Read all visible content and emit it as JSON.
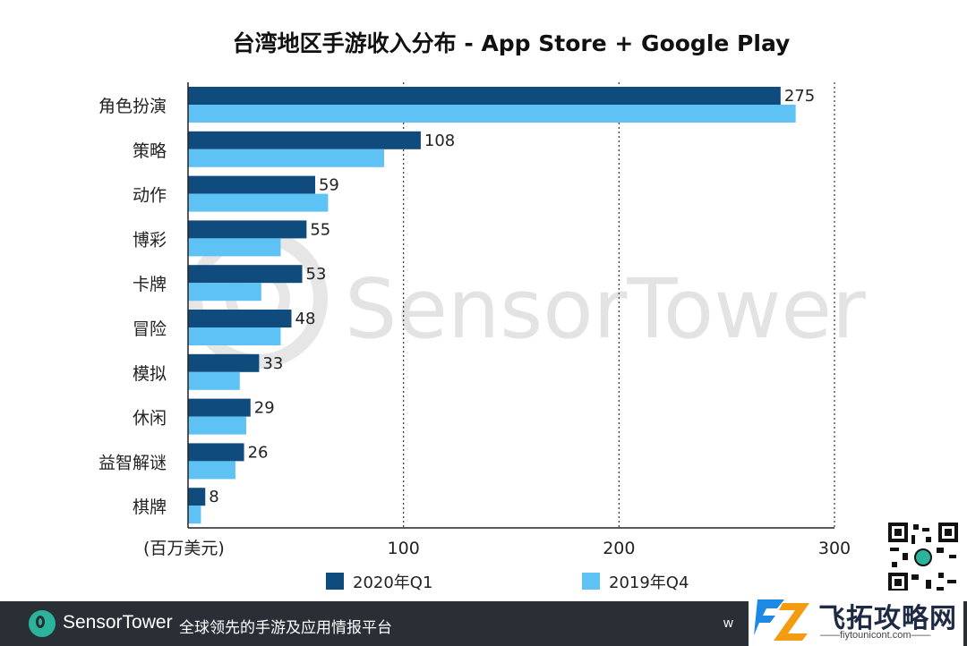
{
  "chart_data": {
    "type": "bar",
    "orientation": "horizontal",
    "title": "台湾地区手游收入分布 - App Store + Google Play",
    "categories": [
      "角色扮演",
      "策略",
      "动作",
      "博彩",
      "卡牌",
      "冒险",
      "模拟",
      "休闲",
      "益智解谜",
      "棋牌"
    ],
    "series": [
      {
        "name": "2020年Q1",
        "color": "#0f4c7d",
        "values": [
          275,
          108,
          59,
          55,
          53,
          48,
          33,
          29,
          26,
          8
        ],
        "data_labels": [
          "275",
          "108",
          "59",
          "55",
          "53",
          "48",
          "33",
          "29",
          "26",
          "8"
        ]
      },
      {
        "name": "2019年Q4",
        "color": "#5ec2f5",
        "values": [
          282,
          91,
          65,
          43,
          34,
          43,
          24,
          27,
          22,
          6
        ]
      }
    ],
    "xlim": [
      0,
      300
    ],
    "x_ticks": [
      "100",
      "200",
      "300"
    ],
    "unit_label": "(百万美元)",
    "grid": "vertical dotted",
    "legend_position": "bottom"
  },
  "watermark": {
    "text": "SensorTower"
  },
  "footer": {
    "brand_part1": "Sensor",
    "brand_part2": "Tower",
    "tagline": "全球领先的手游及应用情报平台",
    "url_partial": "w"
  },
  "site_watermark": {
    "name": "飞拓攻略网",
    "url": "——fiytounicont.com——"
  },
  "icons": {
    "footer_logo": "sensortower-logo-icon",
    "qr": "qr-code-icon",
    "site_logo": "fz-logo-icon"
  }
}
